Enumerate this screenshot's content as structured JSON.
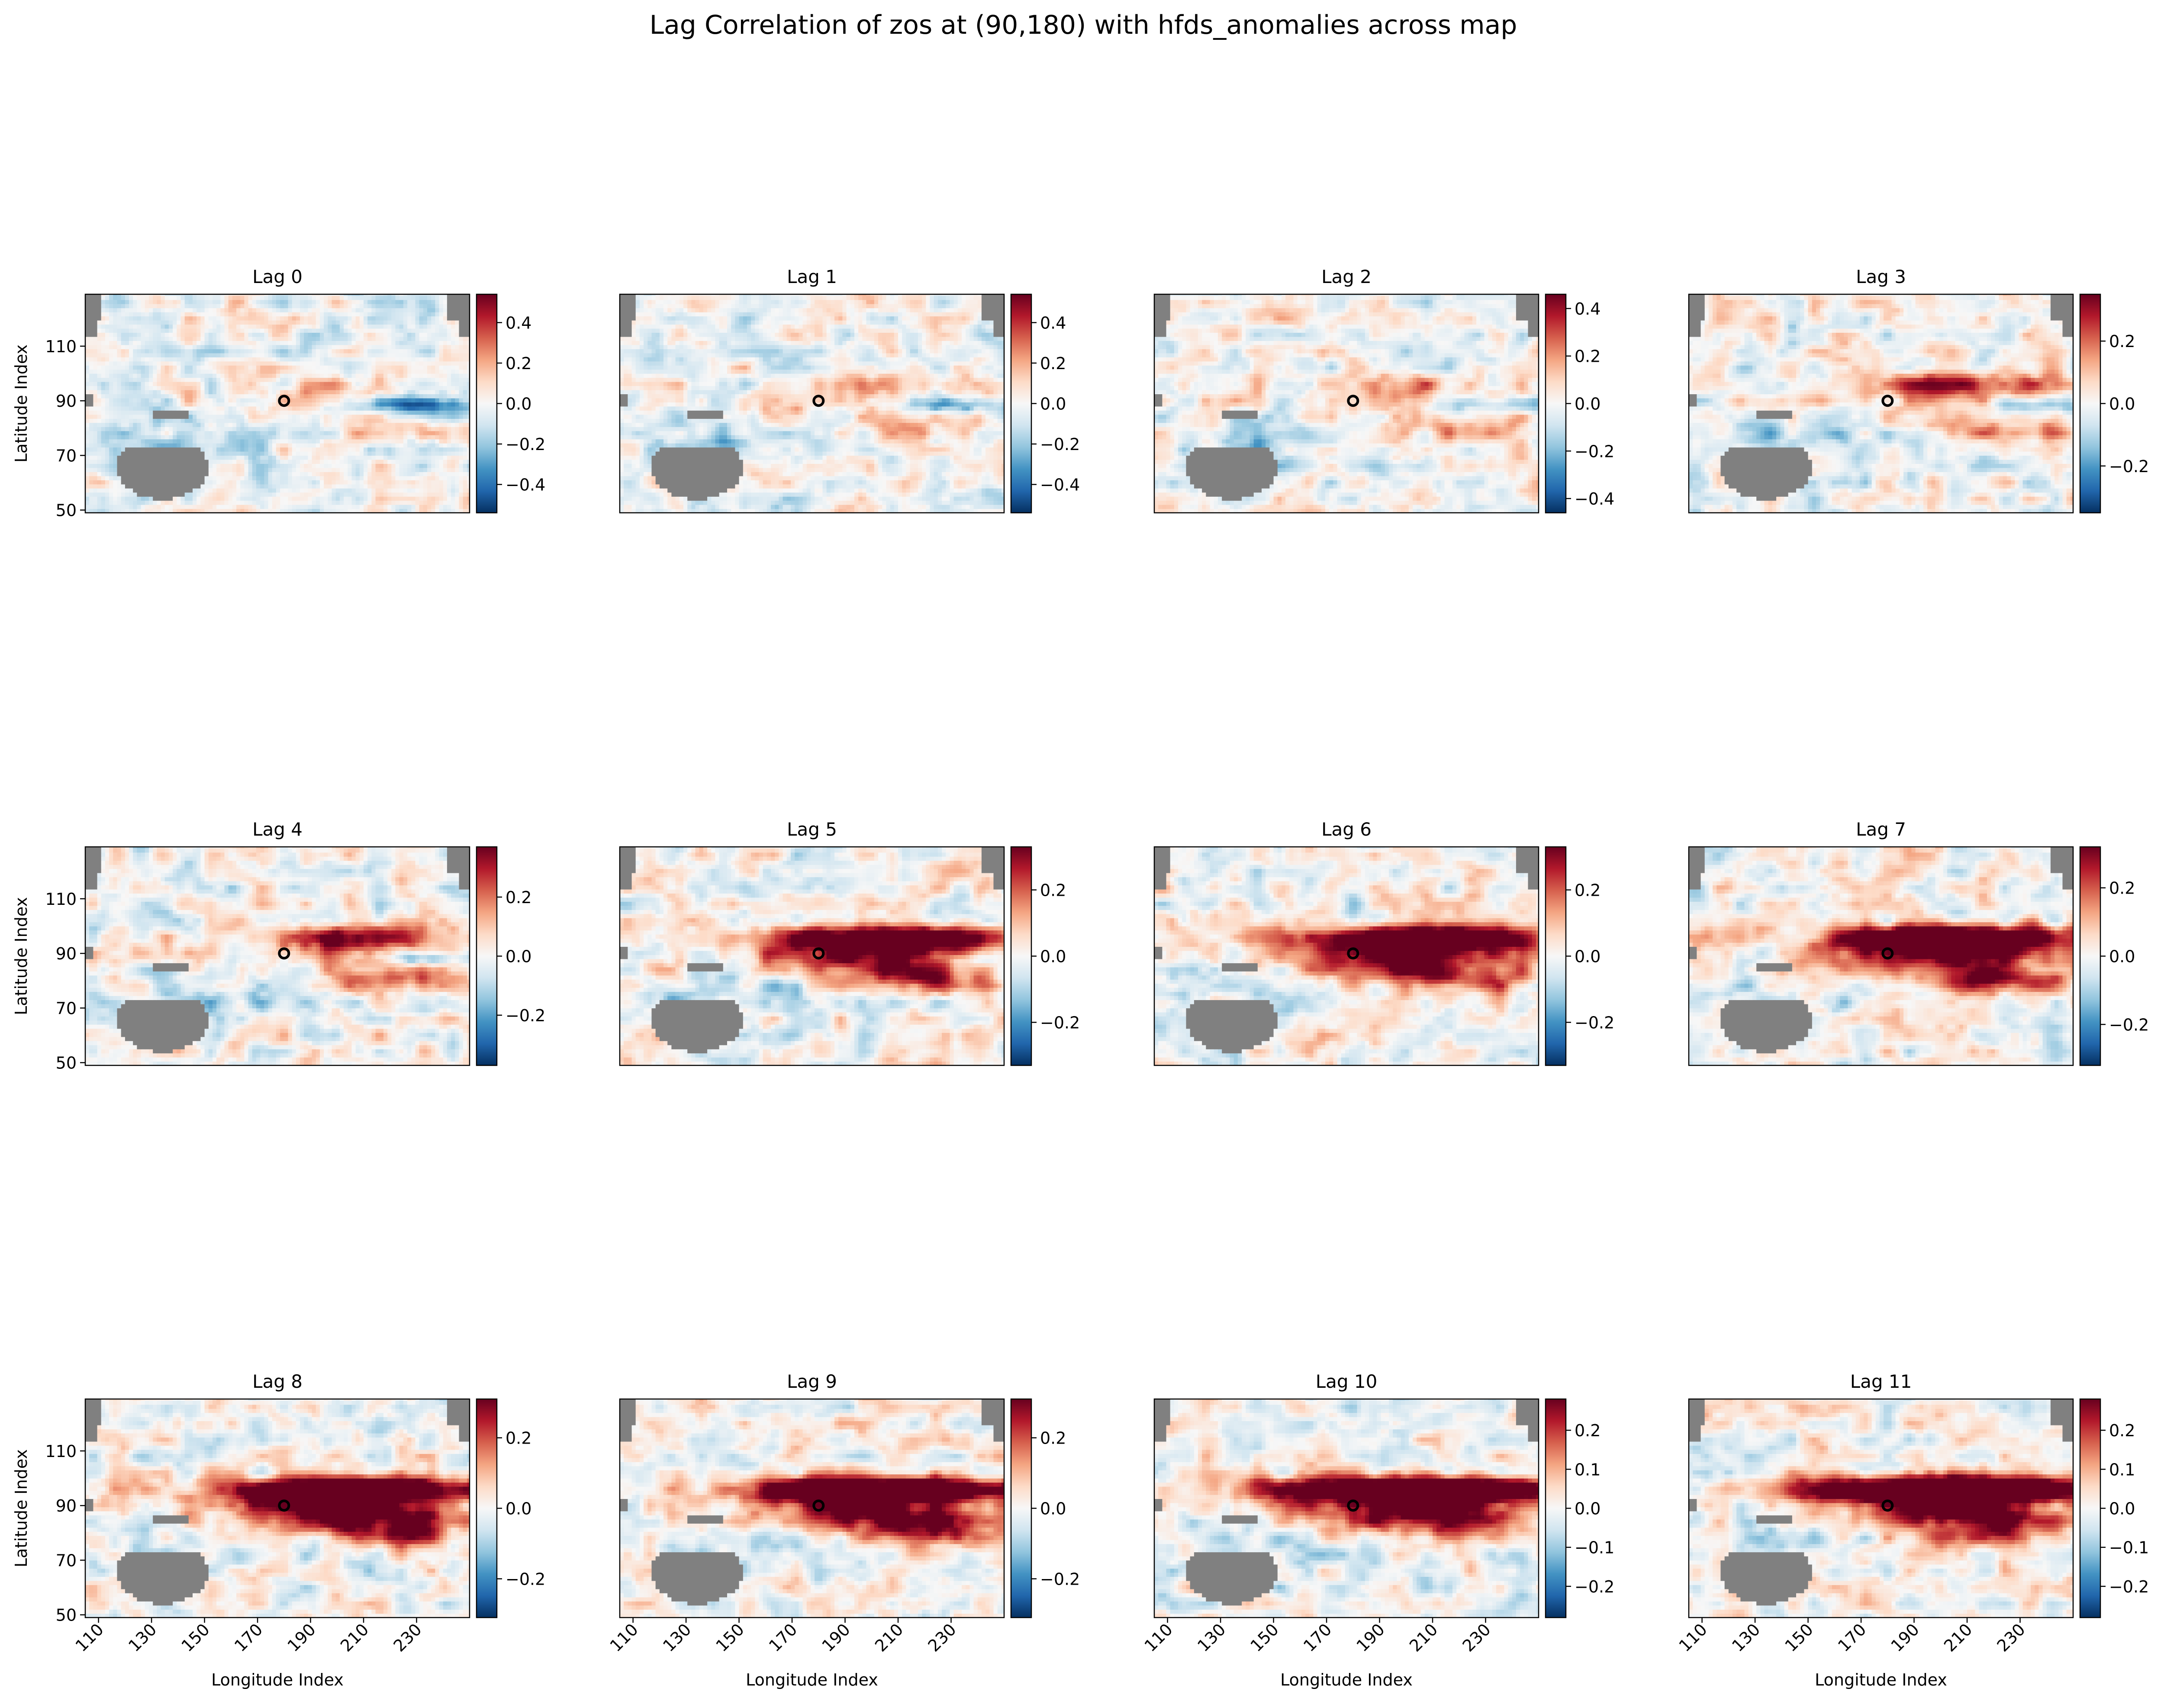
{
  "figure": {
    "title": "Lag Correlation of zos at (90,180) with hfds_anomalies across map"
  },
  "colors": {
    "land": "#808080",
    "colormap": "RdBu_r",
    "cmap_stops": [
      "#053061",
      "#2166ac",
      "#4393c3",
      "#92c5de",
      "#d1e5f0",
      "#f7f7f7",
      "#fddbc7",
      "#f4a582",
      "#d6604d",
      "#b2182b",
      "#67001f"
    ],
    "marker": "#000000"
  },
  "chart_data": {
    "type": "heatmap",
    "reference_point": {
      "lat_index": 90,
      "lon_index": 180
    },
    "xlabel": "Longitude Index",
    "ylabel": "Latitude Index",
    "xlim": [
      105,
      250
    ],
    "ylim": [
      49,
      129
    ],
    "x_ticks": [
      110,
      130,
      150,
      170,
      190,
      210,
      230
    ],
    "y_ticks": [
      50,
      70,
      90,
      110
    ],
    "panels": [
      {
        "title": "Lag 0",
        "vmin": -0.54,
        "vmax": 0.54,
        "cbar_ticks": [
          -0.4,
          -0.2,
          0.0,
          0.2,
          0.4
        ],
        "cbar_labels": [
          "−0.4",
          "−0.2",
          "0.0",
          "0.2",
          "0.4"
        ]
      },
      {
        "title": "Lag 1",
        "vmin": -0.54,
        "vmax": 0.54,
        "cbar_ticks": [
          -0.4,
          -0.2,
          0.0,
          0.2,
          0.4
        ],
        "cbar_labels": [
          "−0.4",
          "−0.2",
          "0.0",
          "0.2",
          "0.4"
        ]
      },
      {
        "title": "Lag 2",
        "vmin": -0.46,
        "vmax": 0.46,
        "cbar_ticks": [
          -0.4,
          -0.2,
          0.0,
          0.2,
          0.4
        ],
        "cbar_labels": [
          "−0.4",
          "−0.2",
          "0.0",
          "0.2",
          "0.4"
        ]
      },
      {
        "title": "Lag 3",
        "vmin": -0.35,
        "vmax": 0.35,
        "cbar_ticks": [
          -0.2,
          0.0,
          0.2
        ],
        "cbar_labels": [
          "−0.2",
          "0.0",
          "0.2"
        ]
      },
      {
        "title": "Lag 4",
        "vmin": -0.37,
        "vmax": 0.37,
        "cbar_ticks": [
          -0.2,
          0.0,
          0.2
        ],
        "cbar_labels": [
          "−0.2",
          "0.0",
          "0.2"
        ]
      },
      {
        "title": "Lag 5",
        "vmin": -0.33,
        "vmax": 0.33,
        "cbar_ticks": [
          -0.2,
          0.0,
          0.2
        ],
        "cbar_labels": [
          "−0.2",
          "0.0",
          "0.2"
        ]
      },
      {
        "title": "Lag 6",
        "vmin": -0.33,
        "vmax": 0.33,
        "cbar_ticks": [
          -0.2,
          0.0,
          0.2
        ],
        "cbar_labels": [
          "−0.2",
          "0.0",
          "0.2"
        ]
      },
      {
        "title": "Lag 7",
        "vmin": -0.32,
        "vmax": 0.32,
        "cbar_ticks": [
          -0.2,
          0.0,
          0.2
        ],
        "cbar_labels": [
          "−0.2",
          "0.0",
          "0.2"
        ]
      },
      {
        "title": "Lag 8",
        "vmin": -0.31,
        "vmax": 0.31,
        "cbar_ticks": [
          -0.2,
          0.0,
          0.2
        ],
        "cbar_labels": [
          "−0.2",
          "0.0",
          "0.2"
        ]
      },
      {
        "title": "Lag 9",
        "vmin": -0.31,
        "vmax": 0.31,
        "cbar_ticks": [
          -0.2,
          0.0,
          0.2
        ],
        "cbar_labels": [
          "−0.2",
          "0.0",
          "0.2"
        ]
      },
      {
        "title": "Lag 10",
        "vmin": -0.28,
        "vmax": 0.28,
        "cbar_ticks": [
          -0.2,
          -0.1,
          0.0,
          0.1,
          0.2
        ],
        "cbar_labels": [
          "−0.2",
          "−0.1",
          "0.0",
          "0.1",
          "0.2"
        ]
      },
      {
        "title": "Lag 11",
        "vmin": -0.28,
        "vmax": 0.28,
        "cbar_ticks": [
          -0.2,
          -0.1,
          0.0,
          0.1,
          0.2
        ],
        "cbar_labels": [
          "−0.2",
          "−0.1",
          "0.0",
          "0.1",
          "0.2"
        ]
      }
    ]
  }
}
